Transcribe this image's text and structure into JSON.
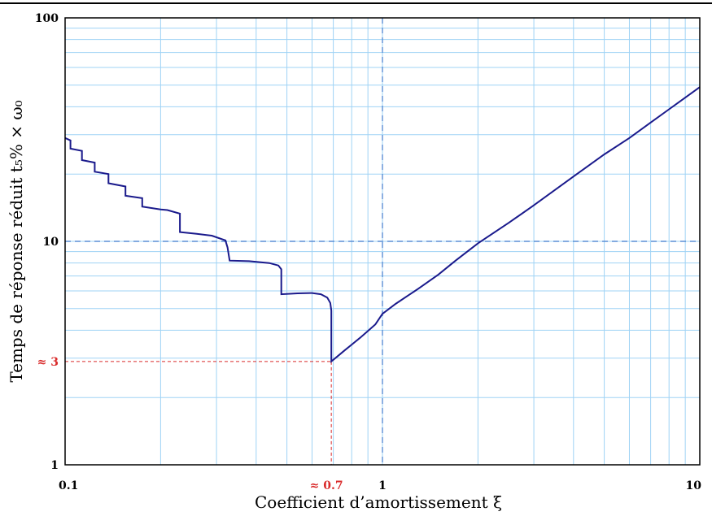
{
  "chart_data": {
    "type": "line",
    "xlabel": "Coefficient d’amortissement ξ",
    "ylabel": "Temps de réponse réduit t₅% × ω₀",
    "x_scale": "log",
    "y_scale": "log",
    "xlim": [
      0.1,
      10
    ],
    "ylim": [
      1,
      100
    ],
    "x_ticks": [
      {
        "value": 0.1,
        "label": "0.1"
      },
      {
        "value": 1,
        "label": "1"
      },
      {
        "value": 10,
        "label": "10"
      }
    ],
    "y_ticks": [
      {
        "value": 1,
        "label": "1"
      },
      {
        "value": 10,
        "label": "10"
      },
      {
        "value": 100,
        "label": "100"
      }
    ],
    "grid": true,
    "colors": {
      "curve": "#1a1a8c",
      "grid": "#9fd3f5",
      "reference": "#5b8fd6",
      "annotation": "#d92b2b"
    },
    "reference_lines": [
      {
        "axis": "x",
        "value": 1
      },
      {
        "axis": "y",
        "value": 10
      }
    ],
    "annotations": [
      {
        "name": "min-x",
        "axis": "x",
        "value": 0.69,
        "y_to": 2.9,
        "label": "≈ 0.7"
      },
      {
        "name": "min-y",
        "axis": "y",
        "value": 2.9,
        "x_to": 0.69,
        "label": "≈ 3"
      }
    ],
    "series": [
      {
        "points": [
          [
            0.1,
            29.0
          ],
          [
            0.104,
            28.3
          ],
          [
            0.104,
            26.0
          ],
          [
            0.113,
            25.4
          ],
          [
            0.113,
            23.1
          ],
          [
            0.124,
            22.5
          ],
          [
            0.124,
            20.5
          ],
          [
            0.137,
            20.0
          ],
          [
            0.137,
            18.2
          ],
          [
            0.155,
            17.6
          ],
          [
            0.155,
            16.0
          ],
          [
            0.175,
            15.6
          ],
          [
            0.175,
            14.3
          ],
          [
            0.2,
            13.9
          ],
          [
            0.21,
            13.8
          ],
          [
            0.23,
            13.3
          ],
          [
            0.23,
            11.0
          ],
          [
            0.26,
            10.8
          ],
          [
            0.29,
            10.6
          ],
          [
            0.32,
            10.1
          ],
          [
            0.325,
            9.4
          ],
          [
            0.33,
            8.2
          ],
          [
            0.38,
            8.15
          ],
          [
            0.44,
            8.0
          ],
          [
            0.47,
            7.8
          ],
          [
            0.48,
            7.5
          ],
          [
            0.48,
            5.8
          ],
          [
            0.54,
            5.85
          ],
          [
            0.6,
            5.87
          ],
          [
            0.64,
            5.8
          ],
          [
            0.67,
            5.6
          ],
          [
            0.685,
            5.3
          ],
          [
            0.69,
            4.9
          ],
          [
            0.69,
            2.9
          ],
          [
            0.72,
            3.05
          ],
          [
            0.76,
            3.25
          ],
          [
            0.8,
            3.45
          ],
          [
            0.85,
            3.7
          ],
          [
            0.9,
            3.97
          ],
          [
            0.95,
            4.25
          ],
          [
            1.0,
            4.74
          ],
          [
            1.1,
            5.25
          ],
          [
            1.2,
            5.7
          ],
          [
            1.3,
            6.15
          ],
          [
            1.5,
            7.1
          ],
          [
            1.7,
            8.2
          ],
          [
            2.0,
            9.8
          ],
          [
            2.5,
            12.1
          ],
          [
            3.0,
            14.5
          ],
          [
            4.0,
            19.5
          ],
          [
            5.0,
            24.5
          ],
          [
            6.0,
            29.0
          ],
          [
            7.0,
            34.0
          ],
          [
            8.0,
            39.0
          ],
          [
            10.0,
            49.0
          ]
        ]
      }
    ]
  }
}
